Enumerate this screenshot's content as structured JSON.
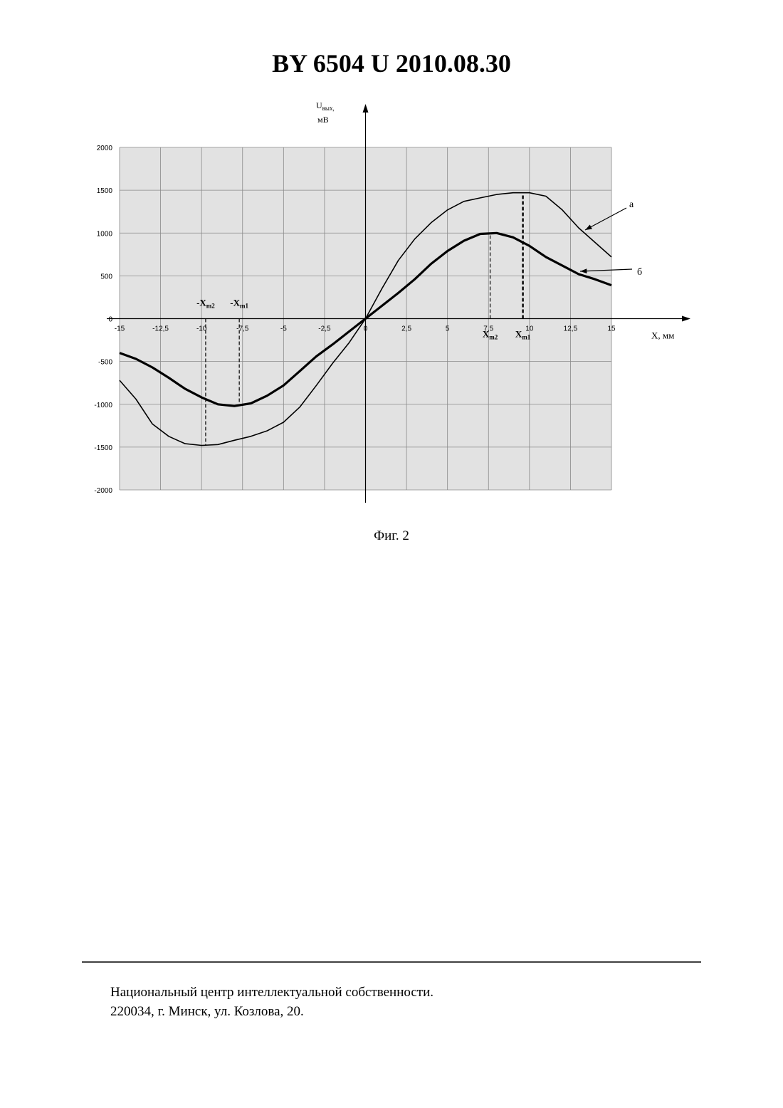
{
  "header": {
    "title": "BY  6504  U  2010.08.30"
  },
  "chart_data": {
    "type": "line",
    "ylabel": {
      "main": "U",
      "sub": "вых,",
      "unit": "мВ"
    },
    "xlabel": "X, мм",
    "x": [
      -15,
      -14,
      -13,
      -12,
      -11,
      -10,
      -9,
      -8,
      -7,
      -6,
      -5,
      -4,
      -3,
      -2,
      -1,
      0,
      1,
      2,
      3,
      4,
      5,
      6,
      7,
      8,
      9,
      10,
      11,
      12,
      13,
      14,
      15
    ],
    "series": [
      {
        "name": "а",
        "color": "#000000",
        "width": 1.6,
        "values": [
          -720,
          -940,
          -1230,
          -1375,
          -1460,
          -1480,
          -1470,
          -1420,
          -1375,
          -1310,
          -1210,
          -1030,
          -780,
          -520,
          -280,
          0,
          350,
          680,
          930,
          1120,
          1270,
          1370,
          1410,
          1450,
          1470,
          1470,
          1430,
          1270,
          1060,
          890,
          720
        ]
      },
      {
        "name": "б",
        "color": "#000000",
        "width": 3.2,
        "values": [
          -400,
          -470,
          -570,
          -690,
          -820,
          -920,
          -1000,
          -1020,
          -990,
          -900,
          -780,
          -610,
          -440,
          -300,
          -150,
          0,
          150,
          300,
          460,
          640,
          790,
          910,
          990,
          1000,
          950,
          850,
          720,
          620,
          520,
          460,
          390
        ]
      }
    ],
    "markers": [
      {
        "base": "-X",
        "sub": "m2",
        "x": -9.75,
        "y": -1480
      },
      {
        "base": "-X",
        "sub": "m1",
        "x": -7.7,
        "y": -1020
      },
      {
        "base": "X",
        "sub": "m2",
        "x": 7.6,
        "y": 1000
      },
      {
        "base": "X",
        "sub": "m1",
        "x": 9.6,
        "y": 1470
      }
    ],
    "xlim": [
      -15,
      15
    ],
    "ylim": [
      -2000,
      2000
    ],
    "xticks": [
      -15,
      {
        "value": -12.5,
        "label": "-12,5"
      },
      -10,
      {
        "value": -7.5,
        "label": "-7,5"
      },
      -5,
      {
        "value": -2.5,
        "label": "-2,5"
      },
      0,
      {
        "value": 2.5,
        "label": "2,5"
      },
      5,
      {
        "value": 7.5,
        "label": "7,5"
      },
      10,
      {
        "value": 12.5,
        "label": "12,5"
      },
      15
    ],
    "yticks": [
      -2000,
      -1500,
      -1000,
      -500,
      0,
      500,
      1000,
      1500,
      2000
    ],
    "grid": true
  },
  "caption": "Фиг. 2",
  "footer": {
    "lines": [
      "Национальный центр интеллектуальной собственности.",
      "220034, г. Минск, ул. Козлова, 20."
    ]
  }
}
